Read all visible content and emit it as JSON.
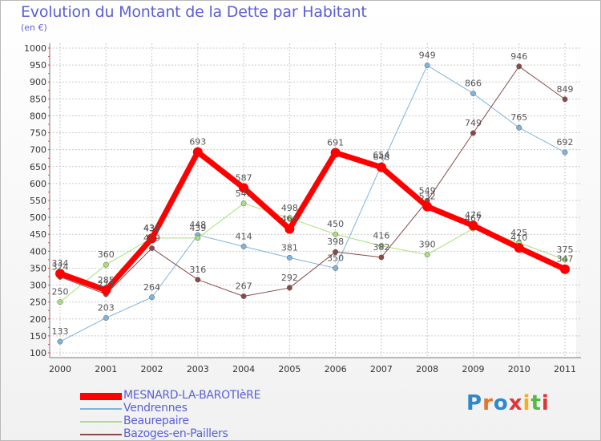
{
  "title": "Evolution du Montant de la Dette par Habitant",
  "subtitle": "(en €)",
  "logo": {
    "text": "Proxiti",
    "colors": [
      "#2f88c9",
      "#e2762a",
      "#2f88c9",
      "#e03535",
      "#f0b21c",
      "#57b847",
      "#e03535"
    ]
  },
  "chart_data": {
    "type": "line",
    "x": [
      "2000",
      "2001",
      "2002",
      "2003",
      "2004",
      "2005",
      "2006",
      "2007",
      "2008",
      "2009",
      "2010",
      "2011"
    ],
    "ylim": [
      100,
      1000
    ],
    "yticks": [
      100,
      150,
      200,
      250,
      300,
      350,
      400,
      450,
      500,
      550,
      600,
      650,
      700,
      750,
      800,
      850,
      900,
      950,
      1000
    ],
    "grid": true,
    "legend_position": "bottom-left",
    "series": [
      {
        "name": "MESNARD-LA-BAROTIèRE",
        "color": "#ff0000",
        "width": 7,
        "values": [
          334,
          285,
          438,
          693,
          587,
          466,
          691,
          648,
          532,
          476,
          410,
          347
        ],
        "labels": [
          "334",
          "285",
          "438",
          "693",
          "587",
          "466",
          "691",
          "648",
          "532",
          "476",
          "410",
          "347"
        ]
      },
      {
        "name": "Vendrennes",
        "color": "#7fb4dd",
        "width": 1,
        "values": [
          133,
          203,
          264,
          448,
          414,
          381,
          350,
          654,
          949,
          866,
          765,
          692
        ],
        "labels": [
          "133",
          "203",
          "264",
          "448",
          "414",
          "381",
          "350",
          "654",
          "949",
          "866",
          "765",
          "692"
        ]
      },
      {
        "name": "Beaurepaire",
        "color": "#a8e07a",
        "width": 1,
        "values": [
          250,
          360,
          439,
          439,
          541,
          498,
          450,
          416,
          390,
          467,
          425,
          375
        ],
        "labels": [
          "250",
          "360",
          "439",
          "439",
          "541",
          "498",
          "450",
          "416",
          "390",
          "467",
          "425",
          "375"
        ]
      },
      {
        "name": "Bazoges-en-Paillers",
        "color": "#8a4a4a",
        "width": 1,
        "values": [
          324,
          273,
          409,
          316,
          267,
          292,
          398,
          382,
          549,
          749,
          946,
          849
        ],
        "labels": [
          "324",
          "273",
          "409",
          "316",
          "267",
          "292",
          "398",
          "382",
          "549",
          "749",
          "946",
          "849"
        ]
      }
    ]
  }
}
